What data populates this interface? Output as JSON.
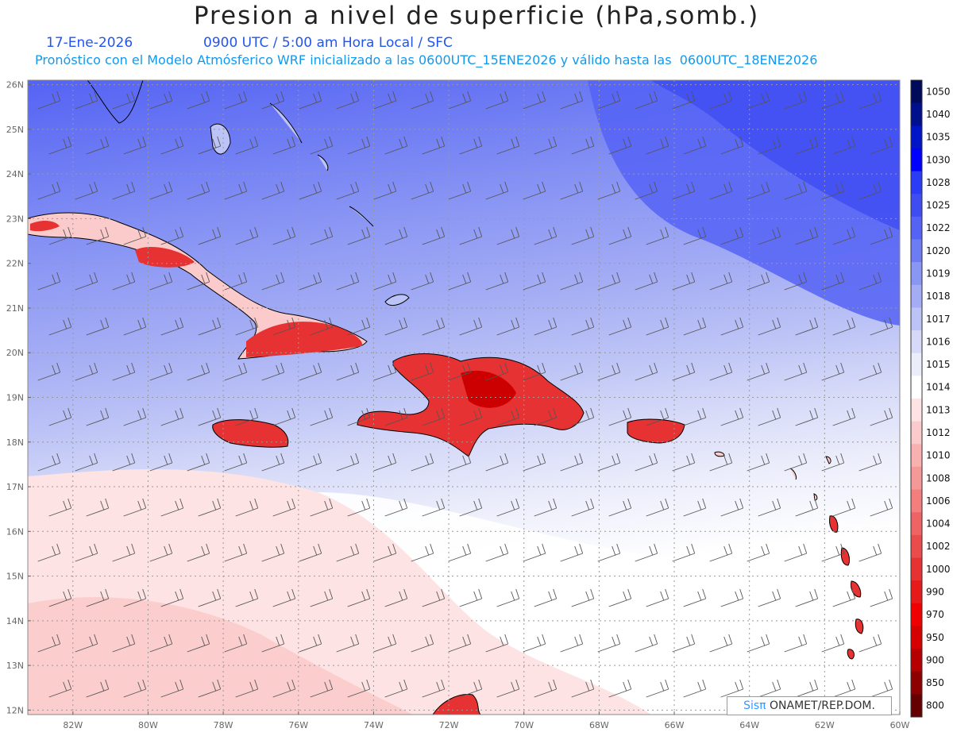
{
  "title": "Presion a nivel de superficie (hPa,somb.)",
  "subtitle": {
    "date": "17-Ene-2026",
    "time": "0900 UTC / 5:00 am Hora Local / SFC",
    "forecast": "Pronóstico con el Modelo Atmósferico WRF inicializado a las 0600UTC_15ENE2026 y válido hasta las  0600UTC_18ENE2026"
  },
  "map": {
    "lat_labels": [
      "26N",
      "25N",
      "24N",
      "23N",
      "22N",
      "21N",
      "20N",
      "19N",
      "18N",
      "17N",
      "16N",
      "15N",
      "14N",
      "13N",
      "12N"
    ],
    "lon_labels": [
      "82W",
      "80W",
      "78W",
      "76W",
      "74W",
      "72W",
      "70W",
      "68W",
      "66W",
      "64W",
      "62W",
      "60W"
    ],
    "lon_range": [
      -83.2,
      -60
    ],
    "lat_range": [
      11.9,
      26.1
    ]
  },
  "colorbar": {
    "levels": [
      "1050",
      "1040",
      "1035",
      "1030",
      "1028",
      "1025",
      "1022",
      "1020",
      "1019",
      "1018",
      "1017",
      "1016",
      "1015",
      "1014",
      "1013",
      "1012",
      "1010",
      "1008",
      "1006",
      "1004",
      "1002",
      "1000",
      "990",
      "970",
      "950",
      "900",
      "850",
      "800"
    ],
    "colors": [
      "#000a5a",
      "#000f8c",
      "#0014c8",
      "#0000ff",
      "#2a3cf5",
      "#3f4cf2",
      "#5563f4",
      "#6e7cf4",
      "#8a96f4",
      "#a3acf4",
      "#bcc3f6",
      "#d6daf8",
      "#ebedfb",
      "#ffffff",
      "#fde3e3",
      "#fbcaca",
      "#f8b0b0",
      "#f59898",
      "#f27e7e",
      "#ee6464",
      "#ea4c4c",
      "#e63232",
      "#e61a1a",
      "#f00000",
      "#d60000",
      "#b40000",
      "#8c0000",
      "#640000"
    ]
  },
  "credit": {
    "logo": "Sisπ",
    "text": " ONAMET/REP.DOM."
  }
}
